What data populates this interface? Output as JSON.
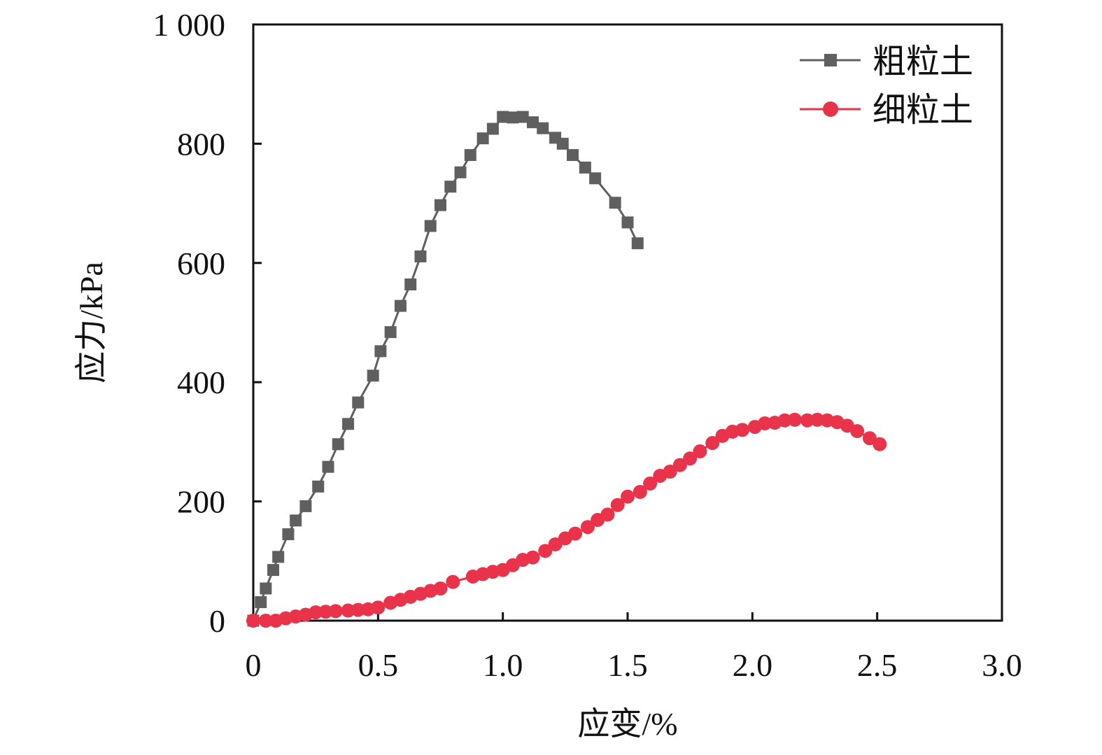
{
  "chart_data": {
    "type": "line",
    "title": "",
    "xlabel": "应变/%",
    "ylabel": "应力/kPa",
    "xlim": [
      0,
      3.0
    ],
    "ylim": [
      0,
      1000
    ],
    "xticks": [
      0,
      0.5,
      1.0,
      1.5,
      2.0,
      2.5,
      3.0
    ],
    "xtick_labels": [
      "0",
      "0.5",
      "1.0",
      "1.5",
      "2.0",
      "2.5",
      "3.0"
    ],
    "yticks": [
      0,
      200,
      400,
      600,
      800,
      1000
    ],
    "ytick_labels": [
      "0",
      "200",
      "400",
      "600",
      "800",
      "1 000"
    ],
    "grid": false,
    "legend_position": "top-right",
    "series": [
      {
        "name": "粗粒土",
        "marker": "square",
        "color": "#5f5f5f",
        "x": [
          0.0,
          0.03,
          0.05,
          0.08,
          0.1,
          0.14,
          0.17,
          0.21,
          0.26,
          0.3,
          0.34,
          0.38,
          0.42,
          0.48,
          0.51,
          0.55,
          0.59,
          0.63,
          0.67,
          0.71,
          0.75,
          0.79,
          0.83,
          0.87,
          0.92,
          0.96,
          1.0,
          1.04,
          1.08,
          1.12,
          1.16,
          1.21,
          1.24,
          1.28,
          1.33,
          1.37,
          1.45,
          1.5,
          1.54
        ],
        "y": [
          0,
          31,
          54,
          85,
          107,
          145,
          168,
          192,
          225,
          258,
          296,
          330,
          366,
          411,
          452,
          484,
          528,
          564,
          611,
          662,
          697,
          728,
          752,
          781,
          809,
          825,
          845,
          844,
          845,
          836,
          826,
          810,
          800,
          781,
          760,
          742,
          701,
          668,
          633
        ]
      },
      {
        "name": "细粒土",
        "marker": "circle",
        "color": "#e8334a",
        "x": [
          0.0,
          0.05,
          0.09,
          0.13,
          0.17,
          0.21,
          0.25,
          0.29,
          0.33,
          0.38,
          0.42,
          0.46,
          0.5,
          0.55,
          0.59,
          0.63,
          0.67,
          0.71,
          0.75,
          0.8,
          0.88,
          0.92,
          0.96,
          1.0,
          1.04,
          1.08,
          1.12,
          1.17,
          1.21,
          1.25,
          1.29,
          1.34,
          1.38,
          1.42,
          1.46,
          1.5,
          1.55,
          1.59,
          1.63,
          1.67,
          1.71,
          1.75,
          1.79,
          1.84,
          1.88,
          1.92,
          1.96,
          2.01,
          2.05,
          2.09,
          2.13,
          2.17,
          2.22,
          2.26,
          2.3,
          2.34,
          2.38,
          2.42,
          2.47,
          2.51
        ],
        "y": [
          0,
          0,
          0,
          4,
          7,
          10,
          14,
          15,
          16,
          17,
          18,
          19,
          22,
          30,
          35,
          40,
          45,
          50,
          54,
          65,
          74,
          78,
          82,
          85,
          93,
          102,
          106,
          117,
          128,
          138,
          146,
          157,
          169,
          178,
          194,
          208,
          216,
          230,
          243,
          250,
          261,
          272,
          284,
          298,
          310,
          317,
          320,
          325,
          331,
          332,
          336,
          337,
          336,
          337,
          336,
          333,
          327,
          318,
          306,
          296
        ]
      }
    ]
  }
}
